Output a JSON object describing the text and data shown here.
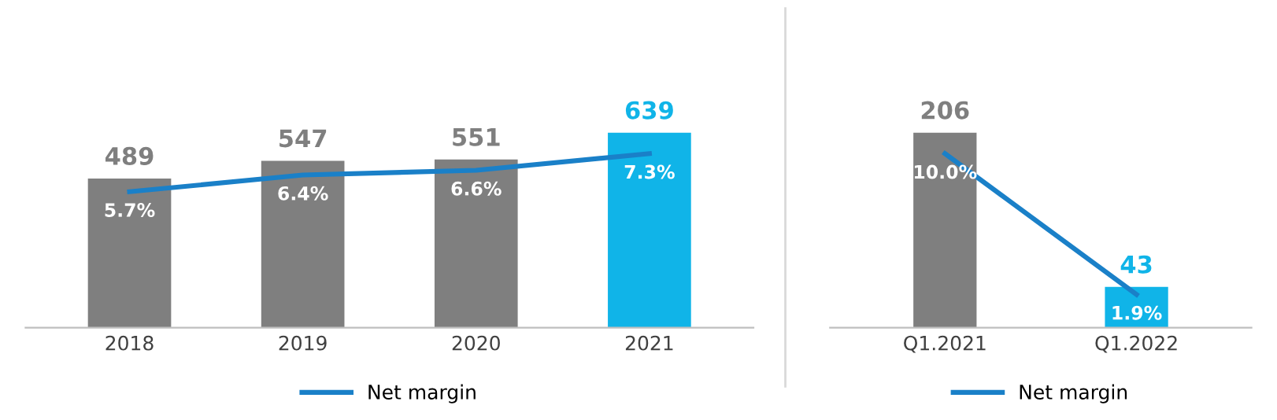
{
  "chart_data": [
    {
      "type": "bar",
      "categories": [
        "2018",
        "2019",
        "2020",
        "2021"
      ],
      "tick_labels": "x",
      "legend": "bottom",
      "data_labels": true,
      "series": [
        {
          "values": [
            489,
            547,
            551,
            639
          ],
          "colors": [
            "#7f7f7f",
            "#7f7f7f",
            "#7f7f7f",
            "#10b4e8"
          ]
        },
        {
          "type": "line",
          "name": "Net margin",
          "axis": "y2",
          "color": "#1a80c8",
          "values": [
            5.7,
            6.4,
            6.6,
            7.3
          ],
          "value_labels": [
            "5.7%",
            "6.4%",
            "6.6%",
            "7.3%"
          ],
          "marker": "none",
          "line_style": "solid"
        }
      ]
    },
    {
      "type": "bar",
      "categories": [
        "Q1.2021",
        "Q1.2022"
      ],
      "tick_labels": "x",
      "legend": "bottom",
      "data_labels": true,
      "series": [
        {
          "values": [
            206,
            43
          ],
          "colors": [
            "#7f7f7f",
            "#10b4e8"
          ]
        },
        {
          "type": "line",
          "name": "Net margin",
          "axis": "y2",
          "color": "#1a80c8",
          "values": [
            10.0,
            1.9
          ],
          "value_labels": [
            "10.0%",
            "1.9%"
          ],
          "marker": "none",
          "line_style": "solid"
        }
      ]
    }
  ]
}
